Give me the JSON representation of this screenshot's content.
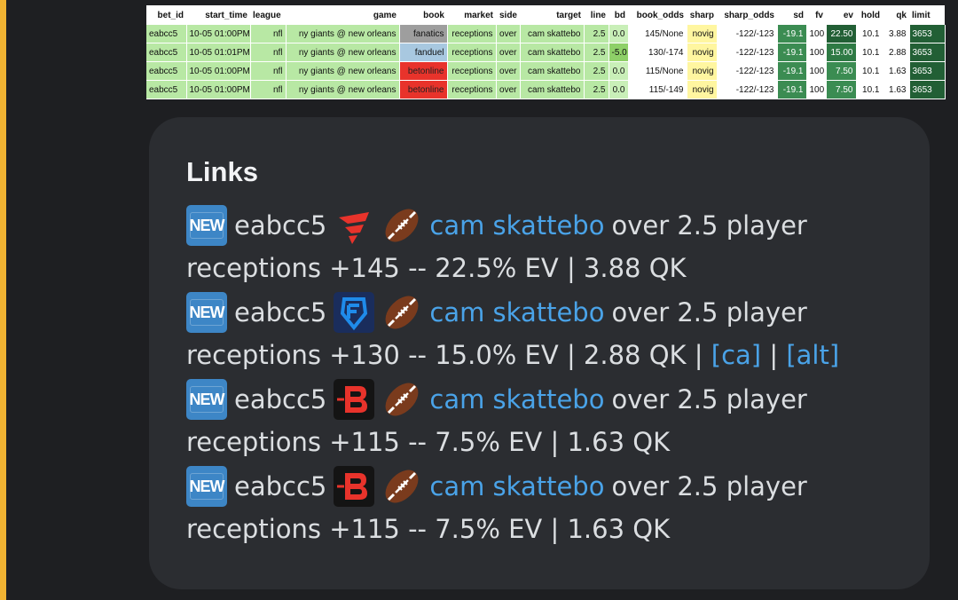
{
  "table": {
    "columns": [
      "bet_id",
      "start_time",
      "league",
      "game",
      "book",
      "market",
      "side",
      "target",
      "line",
      "bd",
      "book_odds",
      "sharp",
      "sharp_odds",
      "sd",
      "fv",
      "ev",
      "hold",
      "qk",
      "limit"
    ],
    "rows": [
      {
        "bet_id": "eabcc5",
        "start_time": "10-05 01:00PM",
        "league": "nfl",
        "game": "ny giants @ new orleans",
        "book": "fanatics",
        "market": "receptions",
        "side": "over",
        "target": "cam skattebo",
        "line": "2.5",
        "bd": "0.0",
        "book_odds": "145/None",
        "sharp": "novig",
        "sharp_odds": "-122/-123",
        "sd": "-19.1",
        "fv": "100",
        "ev": "22.50",
        "hold": "10.1",
        "qk": "3.88",
        "limit": "3653"
      },
      {
        "bet_id": "eabcc5",
        "start_time": "10-05 01:01PM",
        "league": "nfl",
        "game": "ny giants @ new orleans",
        "book": "fanduel",
        "market": "receptions",
        "side": "over",
        "target": "cam skattebo",
        "line": "2.5",
        "bd": "-5.0",
        "book_odds": "130/-174",
        "sharp": "novig",
        "sharp_odds": "-122/-123",
        "sd": "-19.1",
        "fv": "100",
        "ev": "15.00",
        "hold": "10.1",
        "qk": "2.88",
        "limit": "3653"
      },
      {
        "bet_id": "eabcc5",
        "start_time": "10-05 01:00PM",
        "league": "nfl",
        "game": "ny giants @ new orleans",
        "book": "betonline",
        "market": "receptions",
        "side": "over",
        "target": "cam skattebo",
        "line": "2.5",
        "bd": "0.0",
        "book_odds": "115/None",
        "sharp": "novig",
        "sharp_odds": "-122/-123",
        "sd": "-19.1",
        "fv": "100",
        "ev": "7.50",
        "hold": "10.1",
        "qk": "1.63",
        "limit": "3653"
      },
      {
        "bet_id": "eabcc5",
        "start_time": "10-05 01:00PM",
        "league": "nfl",
        "game": "ny giants @ new orleans",
        "book": "betonline",
        "market": "receptions",
        "side": "over",
        "target": "cam skattebo",
        "line": "2.5",
        "bd": "0.0",
        "book_odds": "115/-149",
        "sharp": "novig",
        "sharp_odds": "-122/-123",
        "sd": "-19.1",
        "fv": "100",
        "ev": "7.50",
        "hold": "10.1",
        "qk": "1.63",
        "limit": "3653"
      }
    ]
  },
  "links": {
    "title": "Links",
    "entries": [
      {
        "badge": "NEW",
        "bet_id": "eabcc5",
        "book_icon": "fanatics-logo-icon",
        "sport_icon": "football-icon",
        "player": "cam skattebo",
        "desc1": "over 2.5 player",
        "desc2": "receptions +145 -- 22.5% EV | 3.88 QK",
        "extra": []
      },
      {
        "badge": "NEW",
        "bet_id": "eabcc5",
        "book_icon": "fanduel-logo-icon",
        "sport_icon": "football-icon",
        "player": "cam skattebo",
        "desc1": "over 2.5 player",
        "desc2": "receptions +130 -- 15.0% EV | 2.88 QK | ",
        "extra": [
          "[ca]",
          "[alt]"
        ]
      },
      {
        "badge": "NEW",
        "bet_id": "eabcc5",
        "book_icon": "betonline-logo-icon",
        "sport_icon": "football-icon",
        "player": "cam skattebo",
        "desc1": "over 2.5 player",
        "desc2": "receptions +115 -- 7.5% EV | 1.63 QK",
        "extra": []
      },
      {
        "badge": "NEW",
        "bet_id": "eabcc5",
        "book_icon": "betonline-logo-icon",
        "sport_icon": "football-icon",
        "player": "cam skattebo",
        "desc1": "over 2.5 player",
        "desc2": "receptions +115 -- 7.5% EV | 1.63 QK",
        "extra": []
      }
    ]
  },
  "colors": {
    "accent": "#f0b232",
    "link": "#4aa3e8",
    "card": "#2b2d31",
    "background": "#1e1f22"
  }
}
